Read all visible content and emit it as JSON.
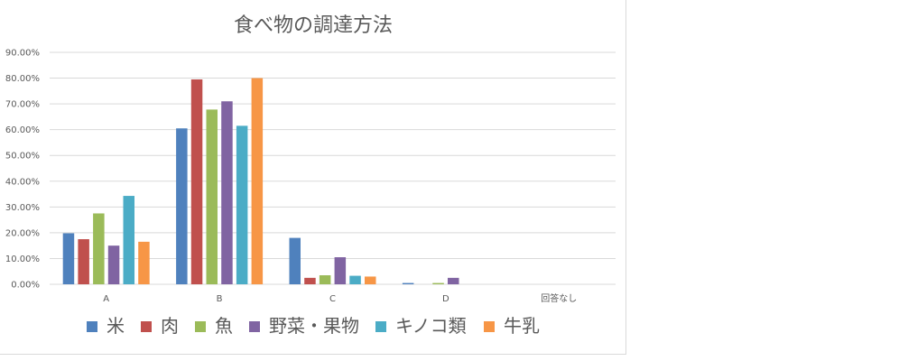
{
  "chart_data": {
    "type": "bar",
    "title": "食べ物の調達方法",
    "categories": [
      "A",
      "B",
      "C",
      "D",
      "回答なし"
    ],
    "y_ticks": [
      "0.00%",
      "10.00%",
      "20.00%",
      "30.00%",
      "40.00%",
      "50.00%",
      "60.00%",
      "70.00%",
      "80.00%",
      "90.00%"
    ],
    "ylim": [
      0,
      90
    ],
    "grid": true,
    "legend_position": "bottom",
    "series": [
      {
        "name": "米",
        "color": "#4f81bd",
        "values": [
          19.8,
          60.5,
          18.0,
          0.5,
          0
        ]
      },
      {
        "name": "肉",
        "color": "#c0504d",
        "values": [
          17.5,
          79.5,
          2.5,
          0,
          0
        ]
      },
      {
        "name": "魚",
        "color": "#9bbb59",
        "values": [
          27.5,
          67.8,
          3.5,
          0.5,
          0
        ]
      },
      {
        "name": "野菜・果物",
        "color": "#8064a2",
        "values": [
          15.0,
          71.0,
          10.5,
          2.5,
          0
        ]
      },
      {
        "name": "キノコ類",
        "color": "#4bacc6",
        "values": [
          34.3,
          61.5,
          3.3,
          0,
          0
        ]
      },
      {
        "name": "牛乳",
        "color": "#f79646",
        "values": [
          16.5,
          80.0,
          3.0,
          0,
          0
        ]
      }
    ]
  }
}
